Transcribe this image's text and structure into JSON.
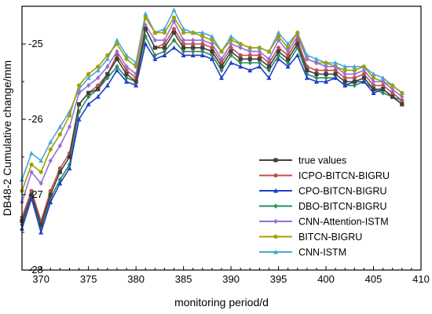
{
  "chart_data": {
    "type": "line",
    "xlabel": "monitoring period/d",
    "ylabel": "DB48-2 Cumulative change/mm",
    "xlim": [
      368,
      410
    ],
    "ylim": [
      -28,
      -24.5
    ],
    "xticks": [
      370,
      375,
      380,
      385,
      390,
      395,
      400,
      405,
      410
    ],
    "yticks": [
      -25,
      -26,
      -27,
      -28
    ],
    "x": [
      368,
      369,
      370,
      371,
      372,
      373,
      374,
      375,
      376,
      377,
      378,
      379,
      380,
      381,
      382,
      383,
      384,
      385,
      386,
      387,
      388,
      389,
      390,
      391,
      392,
      393,
      394,
      395,
      396,
      397,
      398,
      399,
      400,
      401,
      402,
      403,
      404,
      405,
      406,
      407,
      408
    ],
    "legend_position": "lower-right",
    "grid": false,
    "series": [
      {
        "name": "true values",
        "color": "#404040",
        "marker": "square",
        "values": [
          -27.35,
          -27.0,
          -27.4,
          -27.0,
          -26.7,
          -26.5,
          -25.8,
          -25.65,
          -25.6,
          -25.4,
          -25.2,
          -25.4,
          -25.5,
          -24.8,
          -25.05,
          -25.05,
          -24.85,
          -25.05,
          -25.05,
          -25.05,
          -25.1,
          -25.3,
          -25.1,
          -25.2,
          -25.2,
          -25.2,
          -25.3,
          -25.1,
          -25.2,
          -25.0,
          -25.35,
          -25.4,
          -25.4,
          -25.4,
          -25.5,
          -25.5,
          -25.45,
          -25.6,
          -25.6,
          -25.7,
          -25.8
        ]
      },
      {
        "name": "ICPO-BITCN-BIGRU",
        "color": "#c0504d",
        "marker": "circle",
        "values": [
          -27.3,
          -26.95,
          -27.35,
          -26.95,
          -26.65,
          -26.45,
          -25.8,
          -25.65,
          -25.55,
          -25.4,
          -25.15,
          -25.35,
          -25.45,
          -24.8,
          -25.05,
          -25.0,
          -24.8,
          -25.0,
          -25.0,
          -25.0,
          -25.05,
          -25.25,
          -25.05,
          -25.15,
          -25.15,
          -25.15,
          -25.25,
          -25.05,
          -25.15,
          -24.95,
          -25.3,
          -25.35,
          -25.35,
          -25.35,
          -25.45,
          -25.45,
          -25.4,
          -25.55,
          -25.55,
          -25.65,
          -25.75
        ]
      },
      {
        "name": "CPO-BITCN-BIGRU",
        "color": "#1f3fcc",
        "marker": "triangle",
        "values": [
          -27.45,
          -27.05,
          -27.5,
          -27.1,
          -26.85,
          -26.65,
          -26.0,
          -25.8,
          -25.7,
          -25.55,
          -25.35,
          -25.5,
          -25.55,
          -25.0,
          -25.2,
          -25.15,
          -25.05,
          -25.15,
          -25.15,
          -25.15,
          -25.2,
          -25.45,
          -25.25,
          -25.3,
          -25.35,
          -25.3,
          -25.45,
          -25.2,
          -25.3,
          -25.15,
          -25.45,
          -25.5,
          -25.5,
          -25.45,
          -25.55,
          -25.5,
          -25.5,
          -25.65,
          -25.6,
          -25.7,
          -25.8
        ]
      },
      {
        "name": "DBO-BITCN-BIGRU",
        "color": "#2e8b57",
        "marker": "diamond",
        "values": [
          -27.4,
          -27.0,
          -27.45,
          -27.05,
          -26.8,
          -26.6,
          -25.9,
          -25.7,
          -25.6,
          -25.45,
          -25.3,
          -25.45,
          -25.5,
          -24.9,
          -25.15,
          -25.1,
          -24.95,
          -25.1,
          -25.1,
          -25.1,
          -25.15,
          -25.35,
          -25.15,
          -25.25,
          -25.25,
          -25.25,
          -25.35,
          -25.15,
          -25.25,
          -25.05,
          -25.4,
          -25.45,
          -25.45,
          -25.45,
          -25.55,
          -25.55,
          -25.5,
          -25.6,
          -25.65,
          -25.7,
          -25.75
        ]
      },
      {
        "name": "CNN-Attention-ISTM",
        "color": "#9370db",
        "marker": "diamond",
        "values": [
          -27.1,
          -26.7,
          -26.85,
          -26.55,
          -26.35,
          -26.1,
          -25.65,
          -25.55,
          -25.45,
          -25.3,
          -25.1,
          -25.3,
          -25.4,
          -24.75,
          -24.95,
          -24.95,
          -24.7,
          -24.95,
          -24.95,
          -24.95,
          -25.0,
          -25.2,
          -25.0,
          -25.05,
          -25.1,
          -25.1,
          -25.2,
          -24.95,
          -25.1,
          -24.9,
          -25.2,
          -25.25,
          -25.3,
          -25.3,
          -25.4,
          -25.4,
          -25.35,
          -25.5,
          -25.5,
          -25.6,
          -25.7
        ]
      },
      {
        "name": "BITCN-BIGRU",
        "color": "#a0a000",
        "marker": "circle",
        "values": [
          -26.95,
          -26.6,
          -26.7,
          -26.4,
          -26.2,
          -25.95,
          -25.55,
          -25.4,
          -25.3,
          -25.15,
          -25.0,
          -25.2,
          -25.3,
          -24.65,
          -24.85,
          -24.85,
          -24.65,
          -24.85,
          -24.85,
          -24.9,
          -24.95,
          -25.1,
          -24.95,
          -25.0,
          -25.05,
          -25.05,
          -25.1,
          -24.9,
          -25.05,
          -24.85,
          -25.2,
          -25.25,
          -25.25,
          -25.3,
          -25.35,
          -25.35,
          -25.3,
          -25.45,
          -25.5,
          -25.55,
          -25.65
        ]
      },
      {
        "name": "CNN-ISTM",
        "color": "#4aa8d8",
        "marker": "triangle",
        "values": [
          -26.8,
          -26.45,
          -26.55,
          -26.3,
          -26.1,
          -25.9,
          -25.6,
          -25.45,
          -25.35,
          -25.2,
          -24.95,
          -25.15,
          -25.25,
          -24.6,
          -24.85,
          -24.8,
          -24.55,
          -24.8,
          -24.85,
          -24.85,
          -24.9,
          -25.1,
          -24.9,
          -25.0,
          -25.05,
          -25.05,
          -25.1,
          -24.85,
          -25.0,
          -24.85,
          -25.15,
          -25.2,
          -25.25,
          -25.25,
          -25.3,
          -25.3,
          -25.3,
          -25.4,
          -25.45,
          -25.55,
          -25.65
        ]
      }
    ]
  }
}
